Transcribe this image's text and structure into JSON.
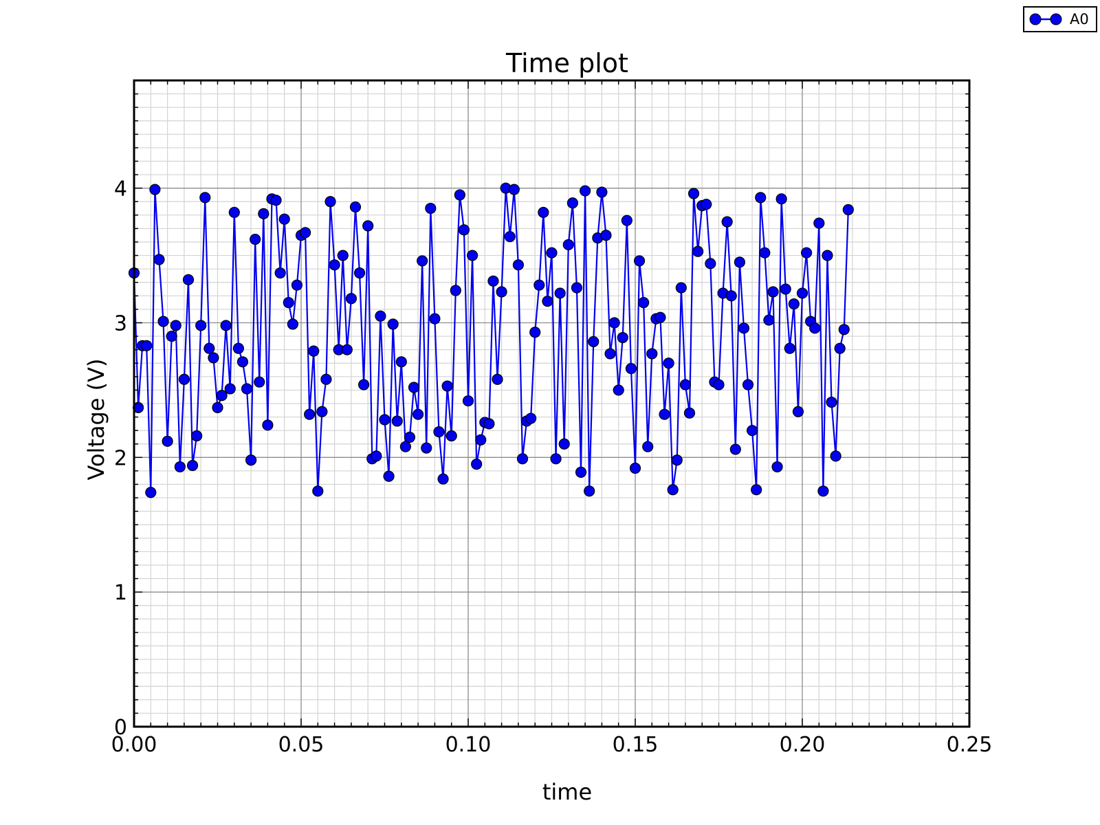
{
  "legend": {
    "label": "A0"
  },
  "colors": {
    "series": "#0000ee",
    "marker_edge": "#000000",
    "major_grid": "#8c8c8c",
    "minor_grid": "#d3d3d3"
  },
  "chart_data": {
    "type": "line",
    "title": "Time plot",
    "xlabel": "time",
    "ylabel": "Voltage (V)",
    "xlim": [
      0.0,
      0.25
    ],
    "ylim": [
      0,
      4.8
    ],
    "x_ticks": [
      "0.00",
      "0.05",
      "0.10",
      "0.15",
      "0.20",
      "0.25"
    ],
    "y_ticks": [
      "0",
      "1",
      "2",
      "3",
      "4"
    ],
    "grid": true,
    "markers": true,
    "legend_position": "top-right (outside plot)",
    "series": [
      {
        "name": "A0",
        "color": "#0000ee",
        "x_start": 0.0,
        "x_step": 0.00125,
        "values": [
          3.37,
          2.37,
          2.83,
          2.83,
          1.74,
          3.99,
          3.47,
          3.01,
          2.12,
          2.9,
          2.98,
          1.93,
          2.58,
          3.32,
          1.94,
          2.16,
          2.98,
          3.93,
          2.81,
          2.74,
          2.37,
          2.46,
          2.98,
          2.51,
          3.82,
          2.81,
          2.71,
          2.51,
          1.98,
          3.62,
          2.56,
          3.81,
          2.24,
          3.92,
          3.91,
          3.37,
          3.77,
          3.15,
          2.99,
          3.28,
          3.65,
          3.67,
          2.32,
          2.79,
          1.75,
          2.34,
          2.58,
          3.9,
          3.43,
          2.8,
          3.5,
          2.8,
          3.18,
          3.86,
          3.37,
          2.54,
          3.72,
          1.99,
          2.01,
          3.05,
          2.28,
          1.86,
          2.99,
          2.27,
          2.71,
          2.08,
          2.15,
          2.52,
          2.32,
          3.46,
          2.07,
          3.85,
          3.03,
          2.19,
          1.84,
          2.53,
          2.16,
          3.24,
          3.95,
          3.69,
          2.42,
          3.5,
          1.95,
          2.13,
          2.26,
          2.25,
          3.31,
          2.58,
          3.23,
          4.0,
          3.64,
          3.99,
          3.43,
          1.99,
          2.27,
          2.29,
          2.93,
          3.28,
          3.82,
          3.16,
          3.52,
          1.99,
          3.22,
          2.1,
          3.58,
          3.89,
          3.26,
          1.89,
          3.98,
          1.75,
          2.86,
          3.63,
          3.97,
          3.65,
          2.77,
          3.0,
          2.5,
          2.89,
          3.76,
          2.66,
          1.92,
          3.46,
          3.15,
          2.08,
          2.77,
          3.03,
          3.04,
          2.32,
          2.7,
          1.76,
          1.98,
          3.26,
          2.54,
          2.33,
          3.96,
          3.53,
          3.87,
          3.88,
          3.44,
          2.56,
          2.54,
          3.22,
          3.75,
          3.2,
          2.06,
          3.45,
          2.96,
          2.54,
          2.2,
          1.76,
          3.93,
          3.52,
          3.02,
          3.23,
          1.93,
          3.92,
          3.25,
          2.81,
          3.14,
          2.34,
          3.22,
          3.52,
          3.01,
          2.96,
          3.74,
          1.75,
          3.5,
          2.41,
          2.01,
          2.81,
          2.95,
          3.84
        ]
      }
    ]
  }
}
